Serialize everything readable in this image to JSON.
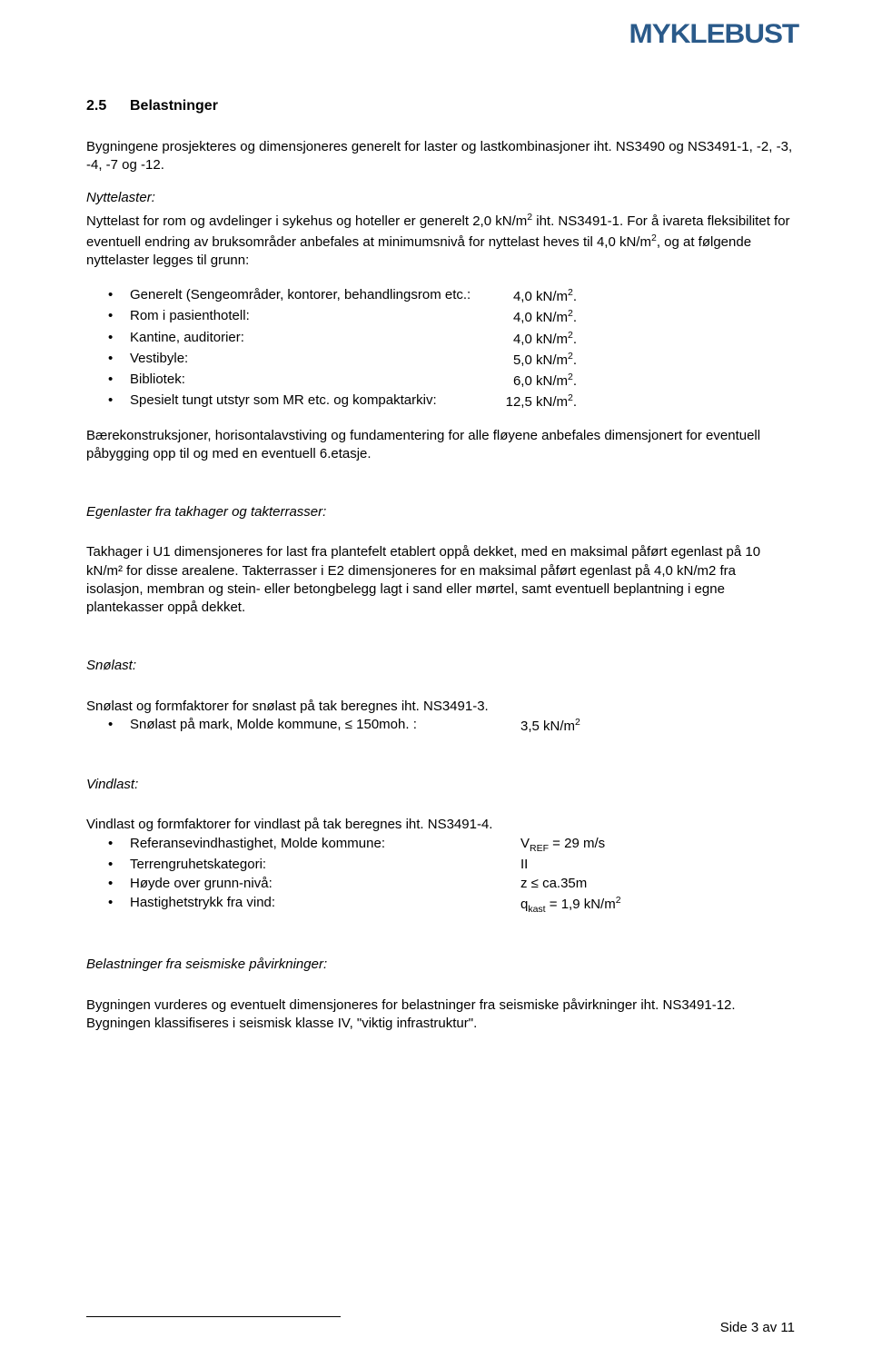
{
  "brand": "MYKLEBUST",
  "heading": {
    "num": "2.5",
    "title": "Belastninger"
  },
  "intro": "Bygningene prosjekteres og dimensjoneres generelt for laster og lastkombinasjoner iht. NS3490 og NS3491-1, -2, -3, -4, -7 og -12.",
  "nytte_head": "Nyttelaster:",
  "nytte_para_a": "Nyttelast for rom og avdelinger i sykehus og hoteller er generelt 2,0 kN/m",
  "nytte_para_b": " iht. NS3491-1. For å ivareta fleksibilitet for eventuell endring av bruksområder anbefales at minimumsnivå for nyttelast heves til 4,0 kN/m",
  "nytte_para_c": ", og at følgende nyttelaster legges til grunn:",
  "loads": [
    {
      "label": "Generelt (Sengeområder, kontorer, behandlingsrom etc.:",
      "val": "4,0 kN/m",
      "sup": "2",
      "tail": "."
    },
    {
      "label": "Rom i pasienthotell:",
      "val": "4,0 kN/m",
      "sup": "2",
      "tail": "."
    },
    {
      "label": "Kantine, auditorier:",
      "val": "4,0 kN/m",
      "sup": "2",
      "tail": "."
    },
    {
      "label": "Vestibyle:",
      "val": "5,0 kN/m",
      "sup": "2",
      "tail": "."
    },
    {
      "label": "Bibliotek:",
      "val": "6,0 kN/m",
      "sup": "2",
      "tail": "."
    },
    {
      "label": "Spesielt tungt utstyr som MR etc. og kompaktarkiv:",
      "val": "12,5 kN/m",
      "sup": "2",
      "tail": "."
    }
  ],
  "baere": "Bærekonstruksjoner, horisontalavstiving og fundamentering for alle fløyene anbefales dimensjonert for eventuell påbygging opp til og med en eventuell 6.etasje.",
  "egen_head": "Egenlaster fra takhager og takterrasser:",
  "egen_para": "Takhager i U1 dimensjoneres for last fra plantefelt etablert oppå dekket, med en maksimal påført egenlast på 10 kN/m² for disse arealene. Takterrasser i E2 dimensjoneres for en maksimal påført egenlast på 4,0 kN/m2 fra isolasjon, membran og stein- eller betongbelegg lagt i sand eller mørtel, samt eventuell beplantning i egne plantekasser oppå dekket.",
  "sno_head": "Snølast:",
  "sno_para": "Snølast og formfaktorer for snølast på tak beregnes iht. NS3491-3.",
  "sno_item_label": "Snølast på mark, Molde kommune, ≤ 150moh. :",
  "sno_item_val": "3,5 kN/m",
  "vind_head": "Vindlast:",
  "vind_para": "Vindlast og formfaktorer for vindlast på tak beregnes iht. NS3491-4.",
  "vind_items": [
    {
      "label": "Referansevindhastighet, Molde kommune:",
      "pre": "V",
      "sub": "REF",
      "post": " = 29 m/s"
    },
    {
      "label": "Terrengruhetskategori:",
      "pre": "II",
      "sub": "",
      "post": ""
    },
    {
      "label": "Høyde over grunn-nivå:",
      "pre": "z ≤ ca.35m",
      "sub": "",
      "post": ""
    },
    {
      "label": "Hastighetstrykk fra vind:",
      "pre": "q",
      "sub": "kast",
      "post": " = 1,9 kN/m",
      "sup": "2"
    }
  ],
  "seis_head": "Belastninger fra seismiske påvirkninger:",
  "seis_para": "Bygningen vurderes og eventuelt dimensjoneres for belastninger fra seismiske påvirkninger iht. NS3491-12. Bygningen klassifiseres i seismisk klasse IV, \"viktig infrastruktur\".",
  "footer": "Side 3 av 11"
}
